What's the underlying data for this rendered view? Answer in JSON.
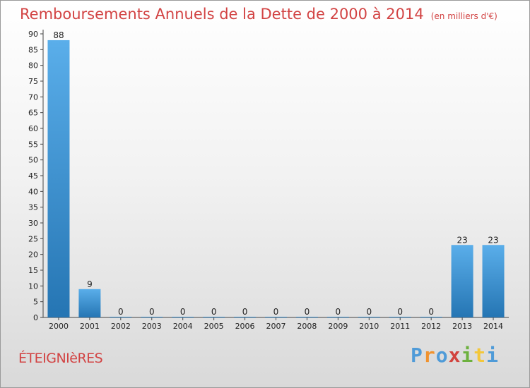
{
  "title": "Remboursements Annuels de la Dette de 2000 à 2014",
  "unit": "(en milliers d'€)",
  "commune": "ÉTEIGNIèRES",
  "brand": {
    "letters": [
      "P",
      "r",
      "o",
      "x",
      "i",
      "t",
      "i"
    ]
  },
  "colors": {
    "title": "#d24343",
    "bar_light": "#5aaeea",
    "bar_dark": "#2575b3",
    "brand": [
      "#4f9bd8",
      "#f0922e",
      "#4f9bd8",
      "#d2433e",
      "#6db13f",
      "#f3c73a",
      "#4f9bd8"
    ]
  },
  "chart_data": {
    "type": "bar",
    "title": "Remboursements Annuels de la Dette de 2000 à 2014",
    "xlabel": "",
    "ylabel": "en milliers d'€",
    "categories": [
      "2000",
      "2001",
      "2002",
      "2003",
      "2004",
      "2005",
      "2006",
      "2007",
      "2008",
      "2009",
      "2010",
      "2011",
      "2012",
      "2013",
      "2014"
    ],
    "values": [
      88,
      9,
      0,
      0,
      0,
      0,
      0,
      0,
      0,
      0,
      0,
      0,
      0,
      23,
      23
    ],
    "ylim": [
      0,
      90
    ],
    "yticks": [
      0,
      5,
      10,
      15,
      20,
      25,
      30,
      35,
      40,
      45,
      50,
      55,
      60,
      65,
      70,
      75,
      80,
      85,
      90
    ],
    "grid": false
  }
}
